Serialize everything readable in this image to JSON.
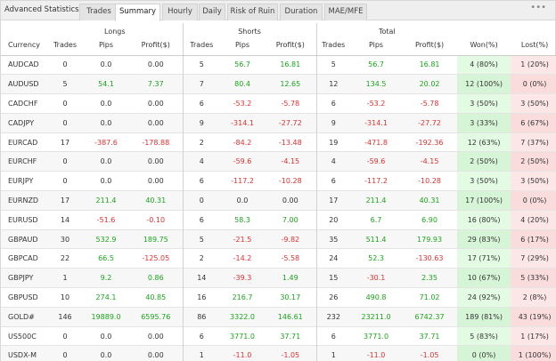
{
  "panel_title": "Advanced Statistics",
  "tabs": [
    "Trades",
    "Summary",
    "Hourly",
    "Daily",
    "Risk of Ruin",
    "Duration",
    "MAE/MFE"
  ],
  "active_tab": "Summary",
  "more_label": "•••",
  "groups": {
    "longs": "Longs",
    "shorts": "Shorts",
    "total": "Total"
  },
  "columns": {
    "currency": "Currency",
    "long_trades": "Trades",
    "long_pips": "Pips",
    "long_profit": "Profit($)",
    "short_trades": "Trades",
    "short_pips": "Pips",
    "short_profit": "Profit($)",
    "total_trades": "Trades",
    "total_pips": "Pips",
    "total_profit": "Profit($)",
    "won": "Won(%)",
    "lost": "Lost(%)"
  },
  "icons": {
    "copy": "copy-icon",
    "chart": "line-chart-icon"
  },
  "colors": {
    "positive": "#1aa51a",
    "negative": "#e03030",
    "won_bg": "#e3fbe3",
    "lost_bg": "#fde6e6"
  },
  "rows": [
    [
      "AUDCAD",
      "0",
      "0.0",
      "0.00",
      "5",
      "56.7",
      "16.81",
      "5",
      "56.7",
      "16.81",
      "4 (80%)",
      "1 (20%)"
    ],
    [
      "AUDUSD",
      "5",
      "54.1",
      "7.37",
      "7",
      "80.4",
      "12.65",
      "12",
      "134.5",
      "20.02",
      "12 (100%)",
      "0 (0%)"
    ],
    [
      "CADCHF",
      "0",
      "0.0",
      "0.00",
      "6",
      "-53.2",
      "-5.78",
      "6",
      "-53.2",
      "-5.78",
      "3 (50%)",
      "3 (50%)"
    ],
    [
      "CADJPY",
      "0",
      "0.0",
      "0.00",
      "9",
      "-314.1",
      "-27.72",
      "9",
      "-314.1",
      "-27.72",
      "3 (33%)",
      "6 (67%)"
    ],
    [
      "EURCAD",
      "17",
      "-387.6",
      "-178.88",
      "2",
      "-84.2",
      "-13.48",
      "19",
      "-471.8",
      "-192.36",
      "12 (63%)",
      "7 (37%)"
    ],
    [
      "EURCHF",
      "0",
      "0.0",
      "0.00",
      "4",
      "-59.6",
      "-4.15",
      "4",
      "-59.6",
      "-4.15",
      "2 (50%)",
      "2 (50%)"
    ],
    [
      "EURJPY",
      "0",
      "0.0",
      "0.00",
      "6",
      "-117.2",
      "-10.28",
      "6",
      "-117.2",
      "-10.28",
      "3 (50%)",
      "3 (50%)"
    ],
    [
      "EURNZD",
      "17",
      "211.4",
      "40.31",
      "0",
      "0.0",
      "0.00",
      "17",
      "211.4",
      "40.31",
      "17 (100%)",
      "0 (0%)"
    ],
    [
      "EURUSD",
      "14",
      "-51.6",
      "-0.10",
      "6",
      "58.3",
      "7.00",
      "20",
      "6.7",
      "6.90",
      "16 (80%)",
      "4 (20%)"
    ],
    [
      "GBPAUD",
      "30",
      "532.9",
      "189.75",
      "5",
      "-21.5",
      "-9.82",
      "35",
      "511.4",
      "179.93",
      "29 (83%)",
      "6 (17%)"
    ],
    [
      "GBPCAD",
      "22",
      "66.5",
      "-125.05",
      "2",
      "-14.2",
      "-5.58",
      "24",
      "52.3",
      "-130.63",
      "17 (71%)",
      "7 (29%)"
    ],
    [
      "GBPJPY",
      "1",
      "9.2",
      "0.86",
      "14",
      "-39.3",
      "1.49",
      "15",
      "-30.1",
      "2.35",
      "10 (67%)",
      "5 (33%)"
    ],
    [
      "GBPUSD",
      "10",
      "274.1",
      "40.85",
      "16",
      "216.7",
      "30.17",
      "26",
      "490.8",
      "71.02",
      "24 (92%)",
      "2 (8%)"
    ],
    [
      "GOLD#",
      "146",
      "19889.0",
      "6595.76",
      "86",
      "3322.0",
      "146.61",
      "232",
      "23211.0",
      "6742.37",
      "189 (81%)",
      "43 (19%)"
    ],
    [
      "US500C",
      "0",
      "0.0",
      "0.00",
      "6",
      "3771.0",
      "37.71",
      "6",
      "3771.0",
      "37.71",
      "5 (83%)",
      "1 (17%)"
    ],
    [
      "USDX-M",
      "0",
      "0.0",
      "0.00",
      "1",
      "-11.0",
      "-1.05",
      "1",
      "-11.0",
      "-1.05",
      "0 (0%)",
      "1 (100%)"
    ]
  ]
}
